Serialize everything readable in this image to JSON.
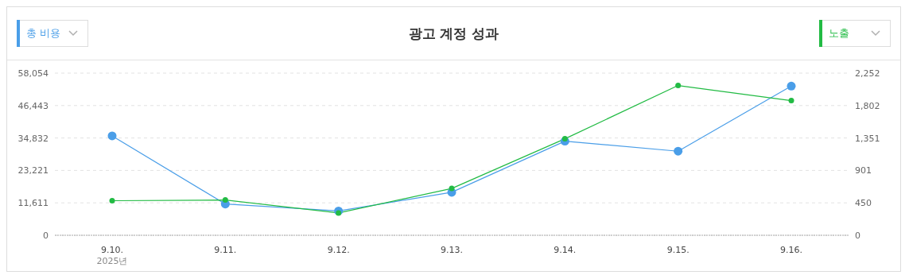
{
  "chart_data": {
    "type": "line",
    "title": "광고 계정 성과",
    "categories": [
      "9.10.\n2025년",
      "9.11.",
      "9.12.",
      "9.13.",
      "9.14.",
      "9.15.",
      "9.16."
    ],
    "series": [
      {
        "name": "총 비용",
        "color": "#4a9ee8",
        "values": [
          35600,
          11200,
          8700,
          15400,
          33700,
          30100,
          53400
        ]
      },
      {
        "name": "노출",
        "color": "#22bb44",
        "axis": "y2",
        "values": [
          480,
          490,
          310,
          650,
          1340,
          2080,
          1870
        ]
      }
    ],
    "ylim": [
      0,
      58054
    ],
    "yticks": [
      0,
      {
        "value": 11611,
        "label": "11,611"
      },
      {
        "value": 23221,
        "label": "23,221"
      },
      {
        "value": 34832,
        "label": "34,832"
      },
      {
        "value": 46443,
        "label": "46,443"
      },
      {
        "value": 58054,
        "label": "58,054"
      }
    ],
    "y2lim": [
      0,
      2252
    ],
    "y2ticks": [
      0,
      450,
      901,
      {
        "value": 1351,
        "label": "1,351"
      },
      {
        "value": 1802,
        "label": "1,802"
      },
      {
        "value": 2252,
        "label": "2,252"
      }
    ],
    "grid": "y",
    "legend": "top",
    "marker": "circle",
    "line_style": "solid"
  }
}
